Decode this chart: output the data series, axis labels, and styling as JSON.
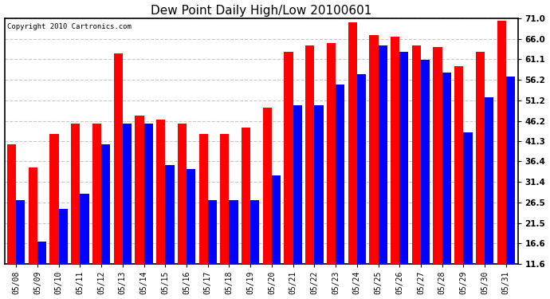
{
  "title": "Dew Point Daily High/Low 20100601",
  "copyright": "Copyright 2010 Cartronics.com",
  "dates": [
    "05/08",
    "05/09",
    "05/10",
    "05/11",
    "05/12",
    "05/13",
    "05/14",
    "05/15",
    "05/16",
    "05/17",
    "05/18",
    "05/19",
    "05/20",
    "05/21",
    "05/22",
    "05/23",
    "05/24",
    "05/25",
    "05/26",
    "05/27",
    "05/28",
    "05/29",
    "05/30",
    "05/31"
  ],
  "highs": [
    40.5,
    35.0,
    43.0,
    45.5,
    45.5,
    62.5,
    47.5,
    46.5,
    45.5,
    43.0,
    43.0,
    44.5,
    49.5,
    63.0,
    64.5,
    65.0,
    70.0,
    67.0,
    66.5,
    64.5,
    64.0,
    59.5,
    63.0,
    70.5
  ],
  "lows": [
    27.0,
    17.0,
    25.0,
    28.5,
    40.5,
    45.5,
    45.5,
    35.5,
    34.5,
    27.0,
    27.0,
    27.0,
    33.0,
    50.0,
    50.0,
    55.0,
    57.5,
    64.5,
    63.0,
    61.0,
    58.0,
    43.5,
    52.0,
    57.0
  ],
  "yticks": [
    11.6,
    16.6,
    21.5,
    26.5,
    31.4,
    36.4,
    41.3,
    46.2,
    51.2,
    56.2,
    61.1,
    66.0,
    71.0
  ],
  "ymin": 11.6,
  "ymax": 71.0,
  "high_color": "#ff0000",
  "low_color": "#0000ff",
  "bg_color": "#ffffff",
  "grid_color": "#c8c8c8",
  "bar_width": 0.42
}
